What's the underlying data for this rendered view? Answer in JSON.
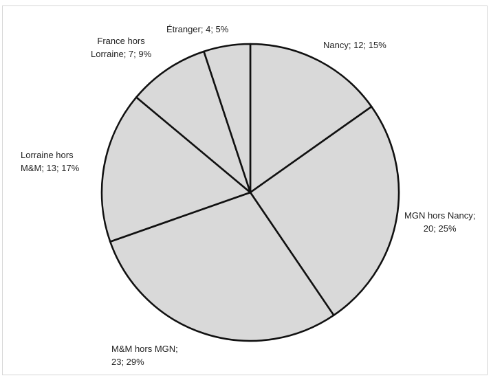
{
  "chart_data": {
    "type": "pie",
    "slices": [
      {
        "category": "Nancy",
        "value": 12,
        "percent": "15%",
        "label_lines": [
          "Nancy; 12; 15%"
        ]
      },
      {
        "category": "MGN hors Nancy",
        "value": 20,
        "percent": "25%",
        "label_lines": [
          "MGN hors Nancy;",
          "20; 25%"
        ]
      },
      {
        "category": "M&M hors MGN",
        "value": 23,
        "percent": "29%",
        "label_lines": [
          "M&M hors MGN;",
          "23; 29%"
        ]
      },
      {
        "category": "Lorraine hors M&M",
        "value": 13,
        "percent": "17%",
        "label_lines": [
          "Lorraine hors",
          "M&M; 13; 17%"
        ]
      },
      {
        "category": "France hors Lorraine",
        "value": 7,
        "percent": "9%",
        "label_lines": [
          "France hors",
          "Lorraine; 7; 9%"
        ]
      },
      {
        "category": "Étranger",
        "value": 4,
        "percent": "5%",
        "label_lines": [
          "Étranger; 4; 5%"
        ]
      }
    ],
    "start_angle_deg": 0,
    "direction": "clockwise",
    "fill_color": "#d9d9d9",
    "edge_color": "#111111",
    "legend": "none"
  }
}
